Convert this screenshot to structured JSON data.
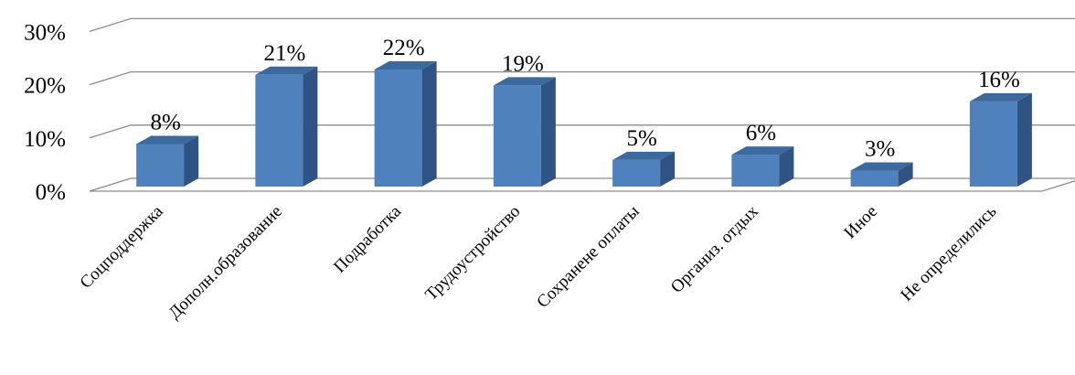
{
  "chart_data": {
    "type": "bar",
    "style": "3d-column",
    "title": "",
    "xlabel": "",
    "ylabel": "",
    "ylim": [
      0,
      30
    ],
    "y_ticks": [
      "0%",
      "10%",
      "20%",
      "30%"
    ],
    "grid": true,
    "legend": "none",
    "categories": [
      "Соцподдержка",
      "Дополн.образование",
      "Подработка",
      "Трудоустройство",
      "Сохранене оплаты",
      "Организ. отдых",
      "Иное",
      "Не определились"
    ],
    "values": [
      8,
      21,
      22,
      19,
      5,
      6,
      3,
      16
    ],
    "data_labels": [
      "8%",
      "21%",
      "22%",
      "19%",
      "5%",
      "6%",
      "3%",
      "16%"
    ],
    "colors": {
      "bar_front": "#4F81BD",
      "bar_top": "#3D6A9E",
      "bar_side": "#2F5382",
      "gridline": "#8C8C8C"
    }
  }
}
